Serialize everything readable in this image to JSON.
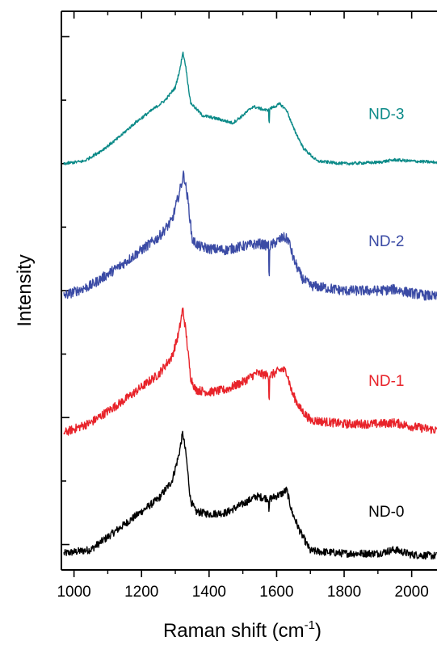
{
  "chart_data": {
    "type": "line",
    "title": "",
    "xlabel": "Raman shift (cm",
    "xlabel_sup": "-1",
    "xlabel_close": ")",
    "ylabel": "Intensity",
    "xlim": [
      965,
      2075
    ],
    "ylim": [
      0,
      4.4
    ],
    "x_ticks": [
      1000,
      1200,
      1400,
      1600,
      1800,
      2000
    ],
    "x_tick_labels": [
      "1000",
      "1200",
      "1400",
      "1600",
      "1800",
      "2000"
    ],
    "y_tick_labels_shown": false,
    "grid": false,
    "series": [
      {
        "name": "ND-0",
        "color": "#000000",
        "noise": 0.03,
        "label_at": [
          1925,
          0.42
        ],
        "points": [
          [
            970,
            0.13
          ],
          [
            1050,
            0.16
          ],
          [
            1100,
            0.26
          ],
          [
            1150,
            0.36
          ],
          [
            1200,
            0.46
          ],
          [
            1250,
            0.56
          ],
          [
            1290,
            0.7
          ],
          [
            1310,
            0.9
          ],
          [
            1322,
            1.08
          ],
          [
            1332,
            0.9
          ],
          [
            1345,
            0.55
          ],
          [
            1360,
            0.46
          ],
          [
            1400,
            0.44
          ],
          [
            1450,
            0.45
          ],
          [
            1500,
            0.52
          ],
          [
            1540,
            0.58
          ],
          [
            1580,
            0.56
          ],
          [
            1615,
            0.6
          ],
          [
            1630,
            0.63
          ],
          [
            1645,
            0.46
          ],
          [
            1670,
            0.3
          ],
          [
            1700,
            0.15
          ],
          [
            1800,
            0.13
          ],
          [
            1900,
            0.13
          ],
          [
            1950,
            0.16
          ],
          [
            2000,
            0.12
          ],
          [
            2075,
            0.11
          ]
        ]
      },
      {
        "name": "ND-1",
        "color": "#e8232a",
        "noise": 0.035,
        "label_at": [
          1925,
          1.45
        ],
        "points": [
          [
            970,
            1.08
          ],
          [
            1050,
            1.16
          ],
          [
            1100,
            1.25
          ],
          [
            1150,
            1.34
          ],
          [
            1200,
            1.44
          ],
          [
            1250,
            1.54
          ],
          [
            1290,
            1.68
          ],
          [
            1310,
            1.86
          ],
          [
            1322,
            2.06
          ],
          [
            1332,
            1.86
          ],
          [
            1345,
            1.52
          ],
          [
            1360,
            1.42
          ],
          [
            1400,
            1.4
          ],
          [
            1450,
            1.42
          ],
          [
            1500,
            1.48
          ],
          [
            1540,
            1.55
          ],
          [
            1580,
            1.53
          ],
          [
            1615,
            1.58
          ],
          [
            1630,
            1.56
          ],
          [
            1645,
            1.4
          ],
          [
            1670,
            1.27
          ],
          [
            1700,
            1.18
          ],
          [
            1800,
            1.15
          ],
          [
            1900,
            1.15
          ],
          [
            1950,
            1.16
          ],
          [
            2000,
            1.13
          ],
          [
            2075,
            1.1
          ]
        ]
      },
      {
        "name": "ND-2",
        "color": "#3b4ba5",
        "noise": 0.04,
        "label_at": [
          1925,
          2.55
        ],
        "points": [
          [
            970,
            2.16
          ],
          [
            1050,
            2.24
          ],
          [
            1100,
            2.33
          ],
          [
            1150,
            2.42
          ],
          [
            1200,
            2.52
          ],
          [
            1250,
            2.62
          ],
          [
            1290,
            2.75
          ],
          [
            1310,
            2.95
          ],
          [
            1325,
            3.12
          ],
          [
            1338,
            2.9
          ],
          [
            1350,
            2.6
          ],
          [
            1370,
            2.55
          ],
          [
            1400,
            2.53
          ],
          [
            1450,
            2.52
          ],
          [
            1500,
            2.55
          ],
          [
            1550,
            2.57
          ],
          [
            1580,
            2.55
          ],
          [
            1620,
            2.62
          ],
          [
            1635,
            2.6
          ],
          [
            1650,
            2.45
          ],
          [
            1675,
            2.3
          ],
          [
            1700,
            2.24
          ],
          [
            1800,
            2.2
          ],
          [
            1900,
            2.2
          ],
          [
            1950,
            2.21
          ],
          [
            2000,
            2.18
          ],
          [
            2075,
            2.15
          ]
        ]
      },
      {
        "name": "ND-3",
        "color": "#0b8a88",
        "noise": 0.012,
        "label_at": [
          1925,
          3.55
        ],
        "points": [
          [
            970,
            3.2
          ],
          [
            1030,
            3.22
          ],
          [
            1080,
            3.3
          ],
          [
            1130,
            3.4
          ],
          [
            1180,
            3.52
          ],
          [
            1230,
            3.62
          ],
          [
            1270,
            3.7
          ],
          [
            1300,
            3.8
          ],
          [
            1315,
            3.96
          ],
          [
            1322,
            4.08
          ],
          [
            1330,
            3.98
          ],
          [
            1345,
            3.68
          ],
          [
            1380,
            3.58
          ],
          [
            1430,
            3.55
          ],
          [
            1470,
            3.52
          ],
          [
            1500,
            3.58
          ],
          [
            1530,
            3.65
          ],
          [
            1570,
            3.62
          ],
          [
            1610,
            3.67
          ],
          [
            1630,
            3.62
          ],
          [
            1650,
            3.48
          ],
          [
            1680,
            3.32
          ],
          [
            1720,
            3.22
          ],
          [
            1800,
            3.2
          ],
          [
            1900,
            3.21
          ],
          [
            1950,
            3.23
          ],
          [
            2000,
            3.22
          ],
          [
            2075,
            3.21
          ]
        ]
      }
    ],
    "artifacts": [
      {
        "series": "ND-0",
        "x": 1578,
        "depth": 0.09
      },
      {
        "series": "ND-1",
        "x": 1578,
        "depth": 0.16
      },
      {
        "series": "ND-2",
        "x": 1578,
        "depth": 0.22
      },
      {
        "series": "ND-3",
        "x": 1578,
        "depth": 0.1
      }
    ]
  }
}
